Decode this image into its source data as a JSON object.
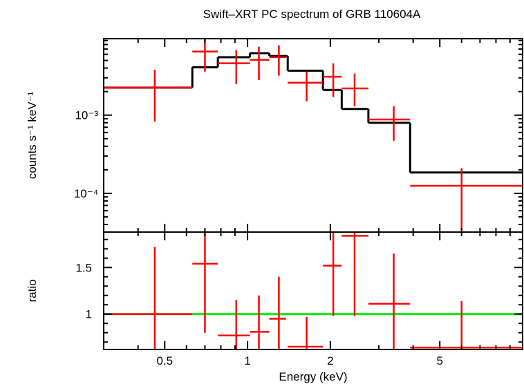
{
  "title": "Swift–XRT PC spectrum of GRB 110604A",
  "colors": {
    "data": "#ff0000",
    "model": "#000000",
    "ratio_line": "#00ee00",
    "axes": "#000000"
  },
  "chart_data": [
    {
      "type": "scatter",
      "panel": "spectrum",
      "title": "Swift–XRT PC spectrum of GRB 110604A",
      "ylabel": "counts s⁻¹ keV⁻¹",
      "xscale": "log",
      "yscale": "log",
      "xlim": [
        0.3,
        10
      ],
      "ylim": [
        3.2e-05,
        0.0095
      ],
      "ytick_labels": [
        "10⁻³",
        "10⁻⁴"
      ],
      "ytick_values": [
        0.001,
        0.0001
      ],
      "series": [
        {
          "style": "errorbars",
          "points": [
            {
              "x": 0.46,
              "xlo": 0.3,
              "xhi": 0.63,
              "y": 0.00225,
              "ylo": 0.00083,
              "yhi": 0.0038
            },
            {
              "x": 0.7,
              "xlo": 0.63,
              "xhi": 0.78,
              "y": 0.0065,
              "ylo": 0.0036,
              "yhi": 0.0095
            },
            {
              "x": 0.91,
              "xlo": 0.78,
              "xhi": 1.02,
              "y": 0.0046,
              "ylo": 0.0025,
              "yhi": 0.0068
            },
            {
              "x": 1.1,
              "xlo": 1.02,
              "xhi": 1.2,
              "y": 0.0051,
              "ylo": 0.0028,
              "yhi": 0.0075
            },
            {
              "x": 1.3,
              "xlo": 1.2,
              "xhi": 1.38,
              "y": 0.0055,
              "ylo": 0.0032,
              "yhi": 0.0078
            },
            {
              "x": 1.64,
              "xlo": 1.4,
              "xhi": 1.88,
              "y": 0.0026,
              "ylo": 0.0015,
              "yhi": 0.0036
            },
            {
              "x": 2.05,
              "xlo": 1.88,
              "xhi": 2.2,
              "y": 0.0031,
              "ylo": 0.0017,
              "yhi": 0.0046
            },
            {
              "x": 2.45,
              "xlo": 2.2,
              "xhi": 2.75,
              "y": 0.0022,
              "ylo": 0.0013,
              "yhi": 0.0034
            },
            {
              "x": 3.4,
              "xlo": 2.75,
              "xhi": 3.9,
              "y": 0.00088,
              "ylo": 0.00047,
              "yhi": 0.0013
            },
            {
              "x": 6.0,
              "xlo": 3.9,
              "xhi": 10.0,
              "y": 0.000125,
              "ylo": 3.3e-05,
              "yhi": 0.00021
            }
          ]
        },
        {
          "style": "step",
          "steps": [
            {
              "x0": 0.3,
              "x1": 0.63,
              "y": 0.00225
            },
            {
              "x0": 0.63,
              "x1": 0.78,
              "y": 0.0041
            },
            {
              "x0": 0.78,
              "x1": 1.02,
              "y": 0.0055
            },
            {
              "x0": 1.02,
              "x1": 1.2,
              "y": 0.0062
            },
            {
              "x0": 1.2,
              "x1": 1.4,
              "y": 0.0057
            },
            {
              "x0": 1.4,
              "x1": 1.88,
              "y": 0.0037
            },
            {
              "x0": 1.88,
              "x1": 2.2,
              "y": 0.0021
            },
            {
              "x0": 2.2,
              "x1": 2.75,
              "y": 0.0012
            },
            {
              "x0": 2.75,
              "x1": 3.9,
              "y": 0.0008
            },
            {
              "x0": 3.9,
              "x1": 10.0,
              "y": 0.000185
            }
          ]
        }
      ]
    },
    {
      "type": "scatter",
      "panel": "ratio",
      "xlabel": "Energy (keV)",
      "ylabel": "ratio",
      "xscale": "log",
      "xlim": [
        0.3,
        10
      ],
      "ylim": [
        0.62,
        1.88
      ],
      "ytick_labels": [
        "1",
        "1.5"
      ],
      "ytick_values": [
        1,
        1.5
      ],
      "xtick_labels": [
        "0.5",
        "1",
        "2",
        "5"
      ],
      "xtick_values": [
        0.5,
        1,
        2,
        5
      ],
      "reference_line": 1,
      "series": [
        {
          "style": "errorbars",
          "points": [
            {
              "x": 0.46,
              "xlo": 0.3,
              "xhi": 0.63,
              "y": 1.0,
              "ylo": 0.62,
              "yhi": 1.72
            },
            {
              "x": 0.7,
              "xlo": 0.63,
              "xhi": 0.78,
              "y": 1.54,
              "ylo": 0.8,
              "yhi": 1.88
            },
            {
              "x": 0.91,
              "xlo": 0.78,
              "xhi": 1.02,
              "y": 0.77,
              "ylo": 0.62,
              "yhi": 1.15
            },
            {
              "x": 1.1,
              "xlo": 1.02,
              "xhi": 1.2,
              "y": 0.81,
              "ylo": 0.62,
              "yhi": 1.2
            },
            {
              "x": 1.3,
              "xlo": 1.2,
              "xhi": 1.38,
              "y": 0.95,
              "ylo": 0.62,
              "yhi": 1.4
            },
            {
              "x": 1.64,
              "xlo": 1.4,
              "xhi": 1.88,
              "y": 0.65,
              "ylo": 0.62,
              "yhi": 0.97
            },
            {
              "x": 2.05,
              "xlo": 1.88,
              "xhi": 2.2,
              "y": 1.52,
              "ylo": 0.98,
              "yhi": 1.88
            },
            {
              "x": 2.45,
              "xlo": 2.2,
              "xhi": 2.75,
              "y": 1.84,
              "ylo": 0.98,
              "yhi": 1.88
            },
            {
              "x": 3.4,
              "xlo": 2.75,
              "xhi": 3.9,
              "y": 1.11,
              "ylo": 0.62,
              "yhi": 1.65
            },
            {
              "x": 6.0,
              "xlo": 3.9,
              "xhi": 10.0,
              "y": 0.64,
              "ylo": 0.62,
              "yhi": 1.14
            }
          ]
        }
      ]
    }
  ]
}
